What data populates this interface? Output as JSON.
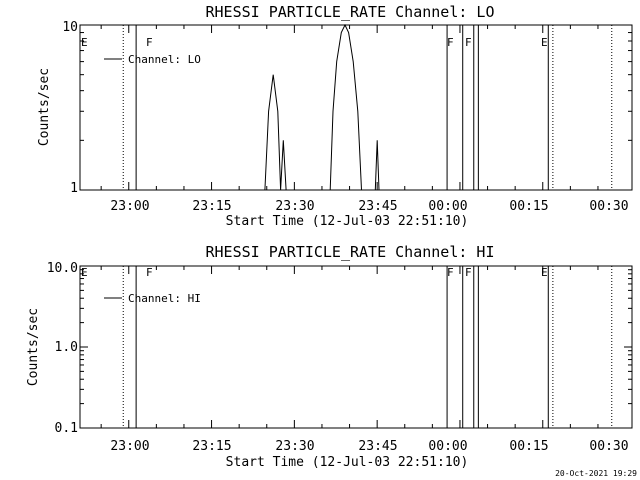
{
  "footer": {
    "timestamp": "20-Oct-2021 19:29"
  },
  "chart_data": [
    {
      "type": "line",
      "title": "RHESSI PARTICLE_RATE Channel: LO",
      "xlabel": "Start Time (12-Jul-03 22:51:10)",
      "ylabel": "Counts/sec",
      "yscale": "log",
      "ylim": [
        1,
        10
      ],
      "xlim": [
        "22:51:10",
        "00:31:10"
      ],
      "xtick_labels": [
        "23:00",
        "23:15",
        "23:30",
        "23:45",
        "00:00",
        "00:15",
        "00:30"
      ],
      "ytick_labels": [
        "1",
        "10"
      ],
      "legend": {
        "entries": [
          "Channel: LO"
        ],
        "placement": "top-left"
      },
      "grid": false,
      "series": [
        {
          "name": "Channel: LO",
          "color": "#000000",
          "points": [
            {
              "x": "23:24:40",
              "y": 1
            },
            {
              "x": "23:25:20",
              "y": 3
            },
            {
              "x": "23:26:10",
              "y": 5
            },
            {
              "x": "23:27:00",
              "y": 3
            },
            {
              "x": "23:27:30",
              "y": 1
            },
            {
              "x": "23:28:00",
              "y": 2
            },
            {
              "x": "23:28:30",
              "y": 1
            },
            {
              "x": "23:36:30",
              "y": 1
            },
            {
              "x": "23:37:00",
              "y": 3
            },
            {
              "x": "23:37:40",
              "y": 6
            },
            {
              "x": "23:38:30",
              "y": 9
            },
            {
              "x": "23:39:10",
              "y": 10
            },
            {
              "x": "23:39:50",
              "y": 9
            },
            {
              "x": "23:40:40",
              "y": 6
            },
            {
              "x": "23:41:30",
              "y": 3
            },
            {
              "x": "23:42:10",
              "y": 1
            },
            {
              "x": "23:44:40",
              "y": 1
            },
            {
              "x": "23:45:00",
              "y": 2
            },
            {
              "x": "23:45:20",
              "y": 1
            }
          ]
        }
      ],
      "flag_labels": [
        "E",
        "F",
        "F",
        "F",
        "E"
      ],
      "markers": [
        {
          "t": "22:59:00",
          "style": "dotted"
        },
        {
          "t": "23:01:20",
          "style": "solid",
          "label": "F"
        },
        {
          "t": "23:57:40",
          "style": "solid"
        },
        {
          "t": "00:00:30",
          "style": "solid",
          "label": "F"
        },
        {
          "t": "00:02:30",
          "style": "solid"
        },
        {
          "t": "00:03:20",
          "style": "solid",
          "label": "F"
        },
        {
          "t": "00:16:00",
          "style": "solid"
        },
        {
          "t": "00:16:50",
          "style": "dotted",
          "label": "E"
        },
        {
          "t": "00:27:30",
          "style": "dotted"
        }
      ]
    },
    {
      "type": "line",
      "title": "RHESSI PARTICLE_RATE Channel: HI",
      "xlabel": "Start Time (12-Jul-03 22:51:10)",
      "ylabel": "Counts/sec",
      "yscale": "log",
      "ylim": [
        0.1,
        10
      ],
      "xlim": [
        "22:51:10",
        "00:31:10"
      ],
      "xtick_labels": [
        "23:00",
        "23:15",
        "23:30",
        "23:45",
        "00:00",
        "00:15",
        "00:30"
      ],
      "ytick_labels": [
        "0.1",
        "1.0",
        "10.0"
      ],
      "legend": {
        "entries": [
          "Channel: HI"
        ],
        "placement": "top-left"
      },
      "grid": false,
      "series": [
        {
          "name": "Channel: HI",
          "color": "#000000",
          "points": []
        }
      ],
      "flag_labels": [
        "E",
        "F",
        "F",
        "F",
        "E"
      ],
      "markers": [
        {
          "t": "22:59:00",
          "style": "dotted"
        },
        {
          "t": "23:01:20",
          "style": "solid",
          "label": "F"
        },
        {
          "t": "23:57:40",
          "style": "solid"
        },
        {
          "t": "00:00:30",
          "style": "solid",
          "label": "F"
        },
        {
          "t": "00:02:30",
          "style": "solid"
        },
        {
          "t": "00:03:20",
          "style": "solid",
          "label": "F"
        },
        {
          "t": "00:16:00",
          "style": "solid"
        },
        {
          "t": "00:16:50",
          "style": "dotted",
          "label": "E"
        },
        {
          "t": "00:27:30",
          "style": "dotted"
        }
      ]
    }
  ]
}
